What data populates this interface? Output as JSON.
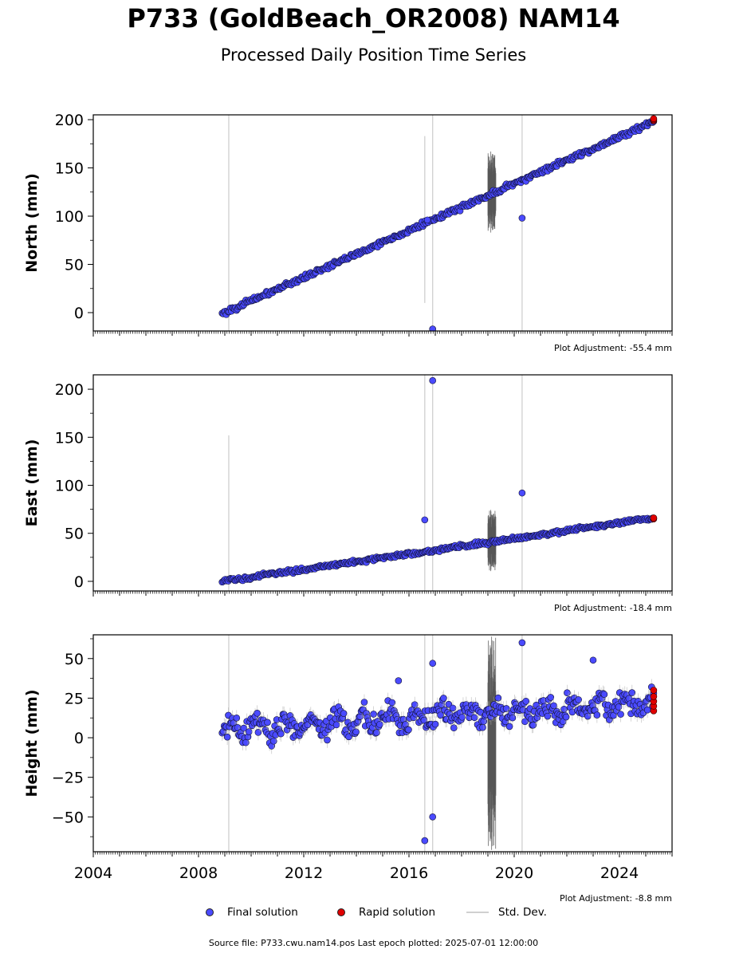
{
  "header": {
    "title": "P733 (GoldBeach_OR2008) NAM14",
    "subtitle": "Processed Daily Position Time Series"
  },
  "legend": {
    "final_label": "Final solution",
    "rapid_label": "Rapid solution",
    "std_label": "Std. Dev."
  },
  "footer": {
    "text": "Source file: P733.cwu.nam14.pos  Last epoch plotted: 2025-07-01 12:00:00"
  },
  "colors": {
    "final": "#4a4aff",
    "rapid": "#e00000",
    "std": "#c8c8c8",
    "noise_band": "#555555"
  },
  "chart_data": [
    {
      "type": "scatter",
      "id": "north",
      "ylabel": "North (mm)",
      "adjustment": "Plot Adjustment: -55.4 mm",
      "xlim": [
        2004.0,
        2026.0
      ],
      "ylim": [
        -19.0,
        205.0
      ],
      "yticks": [
        0,
        50,
        100,
        150,
        200
      ],
      "ytick_labels": [
        "0",
        "50",
        "100",
        "150",
        "200"
      ],
      "trend": {
        "start_year": 2008.9,
        "end_year": 2025.3,
        "start_value": -1,
        "end_value": 198,
        "scatter": 2.5
      },
      "rapid": {
        "year": 2025.3,
        "values": [
          199,
          200,
          201
        ]
      },
      "outliers": [
        {
          "year": 2016.7,
          "value": 96
        },
        {
          "year": 2016.9,
          "value": -17
        },
        {
          "year": 2020.3,
          "value": 98
        }
      ],
      "std_lines": [
        {
          "year": 2009.15,
          "low": -19,
          "high": 205
        },
        {
          "year": 2016.9,
          "low": -19,
          "high": 205
        },
        {
          "year": 2020.3,
          "low": -19,
          "high": 205
        },
        {
          "year": 2016.6,
          "low": 10,
          "high": 183
        }
      ],
      "noise_band": {
        "from": 2019.0,
        "to": 2019.3,
        "low": 80,
        "high": 170
      }
    },
    {
      "type": "scatter",
      "id": "east",
      "ylabel": "East (mm)",
      "adjustment": "Plot Adjustment: -18.4 mm",
      "xlim": [
        2004.0,
        2026.0
      ],
      "ylim": [
        -10.0,
        215.0
      ],
      "yticks": [
        0,
        50,
        100,
        150,
        200
      ],
      "ytick_labels": [
        "0",
        "50",
        "100",
        "150",
        "200"
      ],
      "trend": {
        "start_year": 2008.9,
        "end_year": 2025.3,
        "start_value": 0,
        "end_value": 66,
        "scatter": 2.0
      },
      "rapid": {
        "year": 2025.3,
        "values": [
          65,
          66
        ]
      },
      "outliers": [
        {
          "year": 2016.6,
          "value": 64
        },
        {
          "year": 2016.9,
          "value": 209
        },
        {
          "year": 2020.3,
          "value": 92
        }
      ],
      "std_lines": [
        {
          "year": 2009.15,
          "low": -10,
          "high": 152
        },
        {
          "year": 2016.6,
          "low": -10,
          "high": 215
        },
        {
          "year": 2016.9,
          "low": -10,
          "high": 215
        },
        {
          "year": 2020.3,
          "low": -10,
          "high": 215
        }
      ],
      "noise_band": {
        "from": 2019.0,
        "to": 2019.3,
        "low": 10,
        "high": 75
      }
    },
    {
      "type": "scatter",
      "id": "height",
      "ylabel": "Height (mm)",
      "adjustment": "Plot Adjustment: -8.8 mm",
      "xlim": [
        2004.0,
        2026.0
      ],
      "ylim": [
        -72.0,
        65.0
      ],
      "yticks": [
        -50,
        -25,
        0,
        25,
        50
      ],
      "ytick_labels": [
        "−50",
        "−25",
        "0",
        "25",
        "50"
      ],
      "xticks": [
        2004,
        2008,
        2012,
        2016,
        2020,
        2024
      ],
      "xtick_labels": [
        "2004",
        "2008",
        "2012",
        "2016",
        "2020",
        "2024"
      ],
      "trend": {
        "start_year": 2008.9,
        "end_year": 2025.3,
        "start_value": 5,
        "end_value": 22,
        "scatter": 7.0
      },
      "rapid": {
        "year": 2025.3,
        "values": [
          17,
          20,
          23,
          26,
          30
        ]
      },
      "outliers": [
        {
          "year": 2016.6,
          "value": -65
        },
        {
          "year": 2016.9,
          "value": 47
        },
        {
          "year": 2016.9,
          "value": -50
        },
        {
          "year": 2020.3,
          "value": 60
        },
        {
          "year": 2015.6,
          "value": 36
        },
        {
          "year": 2023.0,
          "value": 49
        }
      ],
      "std_lines": [
        {
          "year": 2009.15,
          "low": -72,
          "high": 65
        },
        {
          "year": 2016.6,
          "low": -72,
          "high": 65
        },
        {
          "year": 2016.9,
          "low": -72,
          "high": 65
        },
        {
          "year": 2020.3,
          "low": -72,
          "high": 65
        }
      ],
      "noise_band": {
        "from": 2019.0,
        "to": 2019.3,
        "low": -72,
        "high": 65
      }
    }
  ]
}
